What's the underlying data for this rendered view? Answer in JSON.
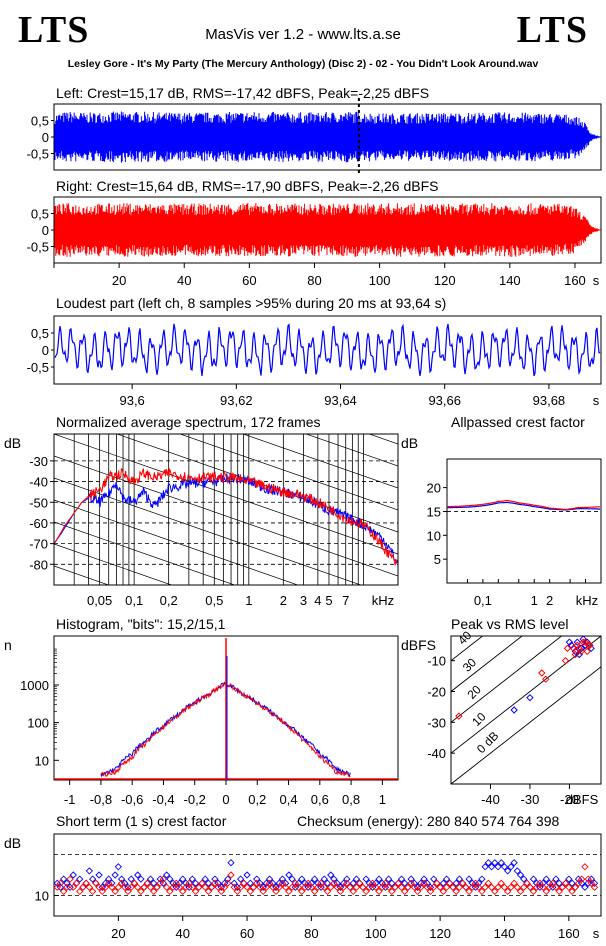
{
  "header": {
    "logo_left": "LTS",
    "logo_right": "LTS",
    "app_title": "MasVis ver 1.2 - www.lts.a.se",
    "file_title": "Lesley Gore - It's My Party (The Mercury Anthology) (Disc 2) - 02 - You Didn't Look Around.wav"
  },
  "colors": {
    "left_channel": "#0000ff",
    "right_channel": "#ff0000",
    "axes": "#000000"
  },
  "chart_data": [
    {
      "id": "left-waveform",
      "type": "area",
      "title": "Left: Crest=15,17 dB, RMS=-17,42 dBFS, Peak=-2,25 dBFS",
      "series": [
        {
          "name": "Left",
          "color": "#0000ff"
        }
      ],
      "ylim": [
        -1,
        1
      ],
      "yticks": [
        "0,5",
        "0",
        "-0,5"
      ],
      "xlim": [
        0,
        168
      ],
      "marker_x": 93.64,
      "envelope": {
        "x": [
          0,
          5,
          10,
          20,
          40,
          60,
          80,
          93,
          100,
          120,
          140,
          155,
          160,
          163,
          165,
          168
        ],
        "amp": [
          0.72,
          0.78,
          0.74,
          0.78,
          0.74,
          0.77,
          0.75,
          0.78,
          0.72,
          0.74,
          0.75,
          0.72,
          0.66,
          0.45,
          0.12,
          0.0
        ]
      }
    },
    {
      "id": "right-waveform",
      "type": "area",
      "title": "Right: Crest=15,64 dB, RMS=-17,90 dBFS, Peak=-2,26 dBFS",
      "series": [
        {
          "name": "Right",
          "color": "#ff0000"
        }
      ],
      "ylim": [
        -1,
        1
      ],
      "yticks": [
        "0,5",
        "0",
        "-0,5"
      ],
      "xlim": [
        0,
        168
      ],
      "xticks": [
        20,
        40,
        60,
        80,
        100,
        120,
        140,
        160
      ],
      "xunit": "s",
      "envelope": {
        "x": [
          0,
          5,
          10,
          20,
          40,
          60,
          80,
          100,
          120,
          140,
          155,
          160,
          163,
          165,
          168
        ],
        "amp": [
          0.8,
          0.82,
          0.8,
          0.82,
          0.8,
          0.82,
          0.8,
          0.82,
          0.8,
          0.82,
          0.8,
          0.7,
          0.45,
          0.12,
          0.0
        ]
      }
    },
    {
      "id": "loudest-part",
      "type": "line",
      "title": "Loudest part (left  ch, 8 samples >95% during 20 ms at 93,64 s)",
      "series": [
        {
          "name": "Left",
          "color": "#0000ff"
        }
      ],
      "ylim": [
        -1,
        1
      ],
      "yticks": [
        "0,5",
        "0",
        "-0,5"
      ],
      "xlim": [
        93.585,
        93.69
      ],
      "xticks": [
        "93,6",
        "93,62",
        "93,64",
        "93,66",
        "93,68"
      ],
      "xunit": "s"
    },
    {
      "id": "spectrum",
      "type": "line",
      "title": "Normalized average spectrum, 172 frames",
      "ylabel": "dB",
      "yticks": [
        -30,
        -40,
        -50,
        -60,
        -70,
        -80
      ],
      "ylim": [
        -90,
        -17
      ],
      "xscale": "log",
      "xlim": [
        0.02,
        20
      ],
      "xticks": [
        "0,05",
        "0,1",
        "0,2",
        "0,5",
        "1",
        "2",
        "3",
        "4",
        "5",
        "7",
        "kHz"
      ],
      "series": [
        {
          "name": "Left",
          "color": "#0000ff",
          "x": [
            0.02,
            0.025,
            0.03,
            0.035,
            0.04,
            0.05,
            0.06,
            0.07,
            0.08,
            0.1,
            0.12,
            0.15,
            0.2,
            0.3,
            0.5,
            0.7,
            1,
            1.5,
            2,
            3,
            4,
            5,
            7,
            10,
            12,
            15,
            20
          ],
          "y": [
            -70,
            -62,
            -55,
            -50,
            -48,
            -50,
            -46,
            -40,
            -48,
            -50,
            -45,
            -52,
            -43,
            -41,
            -40,
            -38,
            -40,
            -44,
            -45,
            -48,
            -51,
            -54,
            -57,
            -61,
            -64,
            -68,
            -80
          ]
        },
        {
          "name": "Right",
          "color": "#ff0000",
          "x": [
            0.02,
            0.025,
            0.03,
            0.035,
            0.04,
            0.05,
            0.06,
            0.07,
            0.08,
            0.1,
            0.12,
            0.15,
            0.2,
            0.3,
            0.5,
            0.7,
            1,
            1.5,
            2,
            3,
            4,
            5,
            7,
            10,
            12,
            15,
            20
          ],
          "y": [
            -70,
            -61,
            -55,
            -50,
            -47,
            -44,
            -38,
            -37,
            -36,
            -40,
            -36,
            -38,
            -36,
            -38,
            -38,
            -38,
            -40,
            -43,
            -45,
            -47,
            -50,
            -53,
            -58,
            -61,
            -65,
            -72,
            -81
          ]
        }
      ]
    },
    {
      "id": "allpass-crest",
      "type": "line",
      "title": "Allpassed crest factor",
      "ylabel": "dB",
      "yticks": [
        20,
        15,
        10,
        5
      ],
      "ylim": [
        0,
        26
      ],
      "xscale": "log",
      "xlim": [
        0.02,
        20
      ],
      "xticks": [
        "0,1",
        "1",
        "2",
        "kHz"
      ],
      "series": [
        {
          "name": "Left",
          "color": "#0000ff",
          "x": [
            0.02,
            0.05,
            0.1,
            0.2,
            0.3,
            0.5,
            1,
            2,
            4,
            7,
            20
          ],
          "y": [
            15.8,
            15.9,
            16.2,
            16.8,
            16.9,
            16.5,
            16.0,
            15.5,
            15.3,
            15.6,
            15.5
          ]
        },
        {
          "name": "Right",
          "color": "#ff0000",
          "x": [
            0.02,
            0.05,
            0.1,
            0.2,
            0.3,
            0.5,
            1,
            2,
            4,
            7,
            20
          ],
          "y": [
            16.0,
            16.2,
            16.5,
            17.1,
            17.3,
            16.8,
            16.3,
            15.7,
            15.4,
            15.8,
            16.0
          ]
        }
      ]
    },
    {
      "id": "histogram",
      "type": "line",
      "title": "Histogram, \"bits\": 15,2/15,1",
      "ylabel": "n",
      "yscale": "log",
      "ylim": [
        3,
        20000
      ],
      "yticks": [
        "1000",
        "100",
        "10"
      ],
      "xlim": [
        -1.1,
        1.1
      ],
      "xticks": [
        "-1",
        "-0,8",
        "-0,6",
        "-0,4",
        "-0,2",
        "0",
        "0,2",
        "0,4",
        "0,6",
        "0,8",
        "1"
      ],
      "series": [
        {
          "name": "Left",
          "color": "#0000ff",
          "x": [
            -0.8,
            -0.7,
            -0.6,
            -0.5,
            -0.4,
            -0.3,
            -0.2,
            -0.1,
            0,
            0.1,
            0.2,
            0.3,
            0.4,
            0.5,
            0.6,
            0.7,
            0.8
          ],
          "y": [
            4,
            6,
            15,
            35,
            80,
            170,
            330,
            600,
            1100,
            600,
            330,
            170,
            80,
            35,
            15,
            6,
            4
          ]
        },
        {
          "name": "Right",
          "color": "#ff0000",
          "x": [
            -0.8,
            -0.7,
            -0.6,
            -0.5,
            -0.4,
            -0.3,
            -0.2,
            -0.1,
            0,
            0.1,
            0.2,
            0.3,
            0.4,
            0.5,
            0.6,
            0.7,
            0.8
          ],
          "y": [
            4,
            5,
            12,
            30,
            75,
            160,
            320,
            580,
            1100,
            580,
            320,
            160,
            75,
            30,
            12,
            5,
            4
          ]
        }
      ]
    },
    {
      "id": "peak-vs-rms",
      "type": "scatter",
      "title": "Peak vs RMS level",
      "ylabel": "dBFS",
      "xlabel": "dBFS",
      "xlim": [
        -50,
        -12
      ],
      "ylim": [
        -50,
        -2
      ],
      "yticks": [
        -10,
        -20,
        -30,
        -40
      ],
      "xticks": [
        -40,
        -30,
        -20
      ],
      "crest_lines": [
        "40",
        "30",
        "20",
        "10",
        "0 dB"
      ],
      "series": [
        {
          "name": "Left",
          "color": "#0000ff",
          "x": [
            -19.5,
            -18,
            -17,
            -16,
            -15.5,
            -18.5,
            -17.5,
            -16.5,
            -15,
            -14.5,
            -20,
            -34,
            -30
          ],
          "y": [
            -5,
            -4,
            -6,
            -5,
            -4,
            -7,
            -8,
            -3,
            -5,
            -6,
            -4,
            -26,
            -22
          ]
        },
        {
          "name": "Right",
          "color": "#ff0000",
          "x": [
            -19,
            -18,
            -17,
            -16,
            -15,
            -18.5,
            -17.5,
            -16.5,
            -15.5,
            -14.8,
            -20.5,
            -21,
            -26,
            -27,
            -48
          ],
          "y": [
            -6,
            -5,
            -7,
            -4,
            -5,
            -8,
            -6,
            -4,
            -7,
            -5,
            -6,
            -10,
            -16,
            -14,
            -28
          ]
        }
      ]
    },
    {
      "id": "short-term-crest",
      "type": "scatter",
      "title": "Short term (1 s) crest factor",
      "annotation": "Checksum (energy):   280 840 574 764 398",
      "ylabel": "dB",
      "ylim": [
        5,
        25
      ],
      "yticks": [
        "10"
      ],
      "gridlines_y": [
        10,
        20
      ],
      "xlim": [
        0,
        170
      ],
      "xticks": [
        20,
        40,
        60,
        80,
        100,
        120,
        140,
        160
      ],
      "xunit": "s",
      "series": [
        {
          "name": "Left",
          "color": "#0000ff",
          "values": [
            13,
            12,
            14,
            13,
            12,
            15,
            13,
            14,
            12,
            13,
            16,
            14,
            13,
            15,
            12,
            13,
            14,
            13,
            15,
            17,
            14,
            13,
            12,
            14,
            13,
            15,
            14,
            12,
            13,
            14,
            13,
            12,
            14,
            13,
            15,
            14,
            13,
            12,
            13,
            14,
            13,
            12,
            14,
            13,
            12,
            13,
            14,
            13,
            12,
            14,
            13,
            12,
            13,
            14,
            18,
            13,
            12,
            14,
            13,
            15,
            13,
            12,
            14,
            13,
            12,
            13,
            14,
            13,
            12,
            13,
            14,
            13,
            15,
            14,
            12,
            13,
            14,
            13,
            12,
            13,
            14,
            13,
            12,
            14,
            13,
            15,
            14,
            13,
            12,
            13,
            14,
            12,
            13,
            14,
            13,
            12,
            14,
            13,
            12,
            13,
            14,
            13,
            12,
            14,
            13,
            12,
            13,
            14,
            13,
            12,
            14,
            13,
            12,
            13,
            14,
            13,
            12,
            14,
            13,
            12,
            13,
            14,
            13,
            12,
            13,
            14,
            13,
            12,
            14,
            13,
            12,
            13,
            14,
            17,
            18,
            17,
            18,
            17,
            18,
            17,
            16,
            17,
            18,
            16,
            15,
            14,
            13,
            12,
            14,
            13,
            12,
            13,
            14,
            13,
            12,
            14,
            13,
            12,
            13,
            14,
            13,
            12,
            14,
            13,
            12,
            13,
            14,
            13
          ]
        },
        {
          "name": "Right",
          "color": "#ff0000",
          "values": [
            12,
            13,
            11,
            12,
            14,
            12,
            13,
            11,
            12,
            13,
            12,
            11,
            13,
            12,
            11,
            12,
            13,
            12,
            11,
            12,
            13,
            12,
            11,
            12,
            13,
            12,
            11,
            12,
            13,
            12,
            11,
            12,
            13,
            14,
            12,
            11,
            12,
            13,
            12,
            11,
            12,
            13,
            12,
            11,
            12,
            13,
            12,
            11,
            12,
            13,
            12,
            11,
            12,
            13,
            15,
            12,
            11,
            12,
            13,
            12,
            11,
            12,
            13,
            12,
            11,
            12,
            13,
            12,
            11,
            12,
            13,
            12,
            11,
            12,
            13,
            12,
            11,
            12,
            13,
            12,
            11,
            12,
            13,
            12,
            11,
            12,
            13,
            12,
            11,
            12,
            13,
            12,
            11,
            12,
            13,
            12,
            11,
            12,
            13,
            12,
            11,
            12,
            13,
            12,
            11,
            12,
            13,
            12,
            11,
            12,
            13,
            12,
            11,
            12,
            13,
            12,
            11,
            12,
            13,
            12,
            11,
            12,
            13,
            12,
            11,
            12,
            13,
            12,
            11,
            12,
            13,
            12,
            11,
            12,
            13,
            12,
            11,
            12,
            13,
            12,
            11,
            12,
            13,
            12,
            11,
            12,
            13,
            12,
            11,
            12,
            13,
            12,
            11,
            12,
            13,
            12,
            11,
            12,
            13,
            12,
            11,
            12,
            13,
            14,
            17,
            14,
            13,
            12
          ]
        }
      ]
    }
  ]
}
